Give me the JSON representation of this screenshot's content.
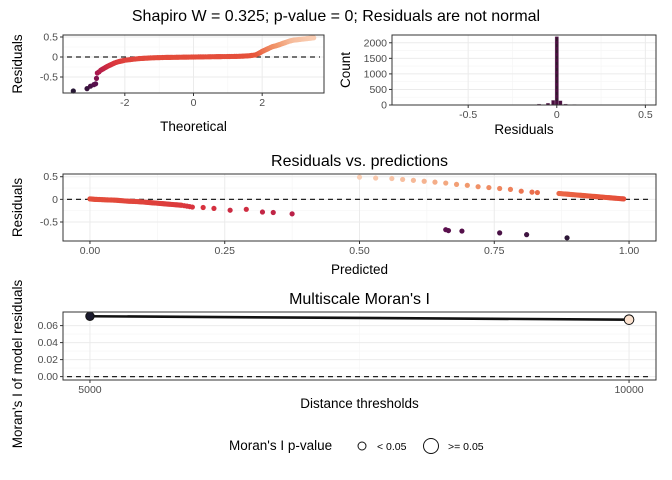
{
  "title": "Shapiro W = 0.325; p-value = 0; Residuals are not normal",
  "colors": {
    "panel_border": "#333333",
    "grid_major": "#ebebeb",
    "grid_minor": "#f5f5f5",
    "axis_text": "#4d4d4d",
    "ramp": [
      "#1a1a2e",
      "#5c0f4f",
      "#a3144f",
      "#d8323e",
      "#e8573a",
      "#f19a6e",
      "#fce2cf"
    ]
  },
  "chart_data": [
    {
      "id": "qq",
      "type": "scatter",
      "title": "",
      "xlabel": "Theoretical",
      "ylabel": "Residuals",
      "xlim": [
        -3.8,
        3.8
      ],
      "ylim": [
        -0.9,
        0.55
      ],
      "xticks": [
        -2,
        0,
        2
      ],
      "yticks": [
        -0.5,
        0.0,
        0.5
      ],
      "hline": 0,
      "points": [
        [
          -3.5,
          -0.85
        ],
        [
          -3.1,
          -0.79
        ],
        [
          -3.0,
          -0.73
        ],
        [
          -2.9,
          -0.69
        ],
        [
          -2.85,
          -0.67
        ],
        [
          -2.8,
          -0.4
        ],
        [
          -2.75,
          -0.37
        ],
        [
          -2.7,
          -0.33
        ],
        [
          -2.6,
          -0.28
        ],
        [
          -2.5,
          -0.23
        ],
        [
          -2.4,
          -0.19
        ],
        [
          -2.3,
          -0.15
        ],
        [
          -2.2,
          -0.12
        ],
        [
          -2.1,
          -0.1
        ],
        [
          -2.0,
          -0.08
        ],
        [
          -1.8,
          -0.06
        ],
        [
          -1.6,
          -0.04
        ],
        [
          -1.4,
          -0.03
        ],
        [
          -1.2,
          -0.02
        ],
        [
          -1.0,
          -0.015
        ],
        [
          -0.8,
          -0.01
        ],
        [
          -0.6,
          -0.008
        ],
        [
          -0.4,
          -0.005
        ],
        [
          -0.2,
          -0.003
        ],
        [
          0.0,
          0.0
        ],
        [
          0.2,
          0.003
        ],
        [
          0.4,
          0.005
        ],
        [
          0.6,
          0.008
        ],
        [
          0.8,
          0.01
        ],
        [
          1.0,
          0.012
        ],
        [
          1.2,
          0.015
        ],
        [
          1.4,
          0.02
        ],
        [
          1.6,
          0.03
        ],
        [
          1.8,
          0.05
        ],
        [
          1.9,
          0.09
        ],
        [
          2.0,
          0.14
        ],
        [
          2.1,
          0.18
        ],
        [
          2.2,
          0.22
        ],
        [
          2.3,
          0.26
        ],
        [
          2.4,
          0.28
        ],
        [
          2.5,
          0.31
        ],
        [
          2.6,
          0.34
        ],
        [
          2.7,
          0.37
        ],
        [
          2.8,
          0.4
        ],
        [
          2.9,
          0.42
        ],
        [
          3.0,
          0.43
        ],
        [
          3.1,
          0.44
        ],
        [
          3.3,
          0.46
        ],
        [
          3.5,
          0.48
        ]
      ]
    },
    {
      "id": "hist",
      "type": "bar",
      "title": "",
      "xlabel": "Residuals",
      "ylabel": "Count",
      "xlim": [
        -0.93,
        0.56
      ],
      "ylim": [
        0,
        2250
      ],
      "xticks": [
        -0.5,
        0.0,
        0.5
      ],
      "yticks": [
        0,
        500,
        1000,
        1500,
        2000
      ],
      "vline": 0,
      "bars": [
        {
          "x": -0.85,
          "count": 3
        },
        {
          "x": -0.75,
          "count": 3
        },
        {
          "x": -0.7,
          "count": 2
        },
        {
          "x": -0.4,
          "count": 4
        },
        {
          "x": -0.3,
          "count": 6
        },
        {
          "x": -0.2,
          "count": 10
        },
        {
          "x": -0.1,
          "count": 30
        },
        {
          "x": -0.05,
          "count": 60
        },
        {
          "x": -0.02,
          "count": 150
        },
        {
          "x": 0.0,
          "count": 2200
        },
        {
          "x": 0.02,
          "count": 140
        },
        {
          "x": 0.05,
          "count": 30
        },
        {
          "x": 0.1,
          "count": 15
        },
        {
          "x": 0.2,
          "count": 10
        },
        {
          "x": 0.3,
          "count": 10
        },
        {
          "x": 0.4,
          "count": 8
        },
        {
          "x": 0.5,
          "count": 6
        }
      ]
    },
    {
      "id": "resid_pred",
      "type": "scatter",
      "title": "Residuals vs. predictions",
      "xlabel": "Predicted",
      "ylabel": "Residuals",
      "xlim": [
        -0.05,
        1.05
      ],
      "ylim": [
        -0.92,
        0.56
      ],
      "xticks": [
        0.0,
        0.25,
        0.5,
        0.75,
        1.0
      ],
      "xtick_labels": [
        "0.00",
        "0.25",
        "0.50",
        "0.75",
        "1.00"
      ],
      "yticks": [
        -0.5,
        0.0,
        0.5
      ],
      "hline": 0,
      "points": [
        [
          0.0,
          0.01
        ],
        [
          0.01,
          0.0
        ],
        [
          0.02,
          -0.005
        ],
        [
          0.03,
          -0.01
        ],
        [
          0.04,
          -0.015
        ],
        [
          0.05,
          -0.02
        ],
        [
          0.06,
          -0.03
        ],
        [
          0.07,
          -0.04
        ],
        [
          0.08,
          -0.045
        ],
        [
          0.09,
          -0.05
        ],
        [
          0.1,
          -0.06
        ],
        [
          0.11,
          -0.07
        ],
        [
          0.12,
          -0.08
        ],
        [
          0.13,
          -0.09
        ],
        [
          0.14,
          -0.1
        ],
        [
          0.15,
          -0.11
        ],
        [
          0.16,
          -0.12
        ],
        [
          0.17,
          -0.13
        ],
        [
          0.19,
          -0.17
        ],
        [
          0.21,
          -0.18
        ],
        [
          0.23,
          -0.2
        ],
        [
          0.26,
          -0.24
        ],
        [
          0.29,
          -0.22
        ],
        [
          0.32,
          -0.28
        ],
        [
          0.34,
          -0.29
        ],
        [
          0.375,
          -0.32
        ],
        [
          0.5,
          0.49
        ],
        [
          0.53,
          0.47
        ],
        [
          0.56,
          0.46
        ],
        [
          0.58,
          0.44
        ],
        [
          0.6,
          0.42
        ],
        [
          0.62,
          0.4
        ],
        [
          0.64,
          0.38
        ],
        [
          0.66,
          0.36
        ],
        [
          0.68,
          0.33
        ],
        [
          0.7,
          0.31
        ],
        [
          0.72,
          0.28
        ],
        [
          0.74,
          0.26
        ],
        [
          0.76,
          0.24
        ],
        [
          0.78,
          0.22
        ],
        [
          0.8,
          0.18
        ],
        [
          0.82,
          0.16
        ],
        [
          0.83,
          0.15
        ],
        [
          0.87,
          0.13
        ],
        [
          0.88,
          0.12
        ],
        [
          0.89,
          0.11
        ],
        [
          0.9,
          0.1
        ],
        [
          0.91,
          0.09
        ],
        [
          0.92,
          0.08
        ],
        [
          0.93,
          0.07
        ],
        [
          0.94,
          0.06
        ],
        [
          0.95,
          0.05
        ],
        [
          0.96,
          0.04
        ],
        [
          0.97,
          0.03
        ],
        [
          0.98,
          0.02
        ],
        [
          0.99,
          0.01
        ],
        [
          1.0,
          0.0
        ],
        [
          0.66,
          -0.67
        ],
        [
          0.665,
          -0.69
        ],
        [
          0.69,
          -0.7
        ],
        [
          0.76,
          -0.74
        ],
        [
          0.81,
          -0.78
        ],
        [
          0.885,
          -0.85
        ]
      ]
    },
    {
      "id": "moran",
      "type": "line",
      "title": "Multiscale Moran's I",
      "xlabel": "Distance thresholds",
      "ylabel": "Moran's I of model residuals",
      "xlim": [
        4750,
        10250
      ],
      "ylim": [
        -0.004,
        0.076
      ],
      "xticks": [
        5000,
        10000
      ],
      "yticks": [
        0.0,
        0.02,
        0.04,
        0.06
      ],
      "ytick_labels": [
        "0.00",
        "0.02",
        "0.04",
        "0.06"
      ],
      "hline": 0,
      "points": [
        {
          "x": 5000,
          "y": 0.071,
          "p_group": "< 0.05"
        },
        {
          "x": 10000,
          "y": 0.067,
          "p_group": ">= 0.05"
        }
      ],
      "legend": {
        "title": "Moran's I p-value",
        "entries": [
          "< 0.05",
          ">= 0.05"
        ],
        "placement": "bottom"
      }
    }
  ]
}
